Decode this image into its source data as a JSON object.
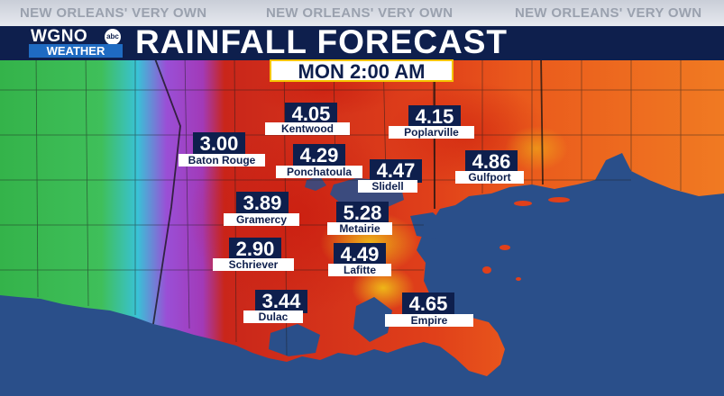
{
  "header": {
    "tagline": "NEW ORLEANS' VERY OWN",
    "logo_text": "WGNO",
    "logo_network": "abc",
    "logo_sub": "WEATHER",
    "title": "RAINFALL FORECAST",
    "time": "MON  2:00 AM"
  },
  "colors": {
    "title_bar": "#0e1f4d",
    "label_value_bg": "#0e1f4d",
    "time_border": "#f5c400",
    "gulf_water": "#2a4f8a"
  },
  "forecast": [
    {
      "city": "Kentwood",
      "value": "4.05"
    },
    {
      "city": "Poplarville",
      "value": "4.15"
    },
    {
      "city": "Baton Rouge",
      "value": "3.00"
    },
    {
      "city": "Ponchatoula",
      "value": "4.29"
    },
    {
      "city": "Slidell",
      "value": "4.47"
    },
    {
      "city": "Gulfport",
      "value": "4.86"
    },
    {
      "city": "Gramercy",
      "value": "3.89"
    },
    {
      "city": "Metairie",
      "value": "5.28"
    },
    {
      "city": "Schriever",
      "value": "2.90"
    },
    {
      "city": "Lafitte",
      "value": "4.49"
    },
    {
      "city": "Dulac",
      "value": "3.44"
    },
    {
      "city": "Empire",
      "value": "4.65"
    }
  ]
}
